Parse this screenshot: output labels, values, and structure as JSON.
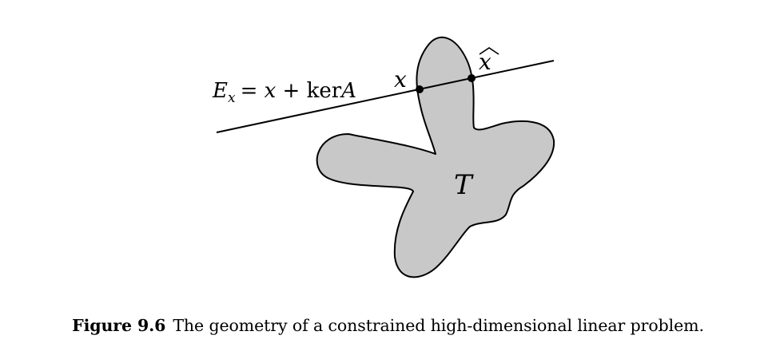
{
  "diagram": {
    "line_label": {
      "main": "E",
      "sub": "x",
      "rest_1": "= x + ",
      "ker": "ker",
      "rest_2": "A"
    },
    "point_x_label": "x",
    "point_xhat_label": "x",
    "region_label": "T",
    "colors": {
      "region_fill": "#c8c8c8",
      "stroke": "#000000"
    }
  },
  "caption": {
    "label": "Figure 9.6",
    "text": "The geometry of a constrained high-dimensional linear problem."
  }
}
